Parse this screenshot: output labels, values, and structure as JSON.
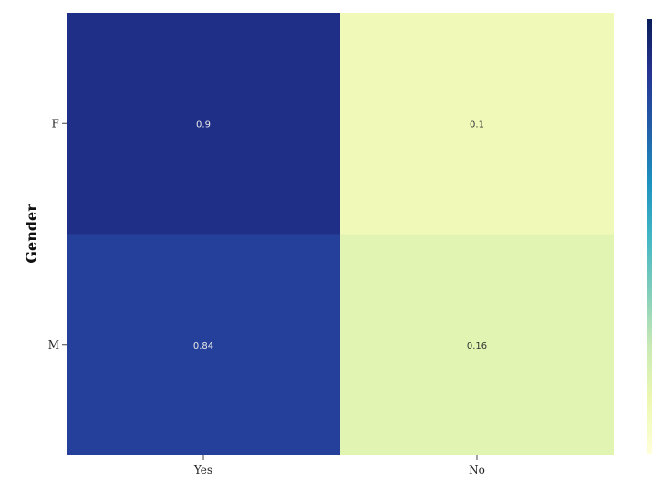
{
  "chart_data": {
    "type": "heatmap",
    "title": "",
    "xlabel": "",
    "ylabel": "Gender",
    "x_categories": [
      "Yes",
      "No"
    ],
    "y_categories": [
      "F",
      "M"
    ],
    "values": [
      [
        0.9,
        0.1
      ],
      [
        0.84,
        0.16
      ]
    ],
    "value_labels": [
      [
        "0.9",
        "0.1"
      ],
      [
        "0.84",
        "0.16"
      ]
    ],
    "colorscale": {
      "name": "YlGnBu",
      "low_color": "#ffffd9",
      "high_color": "#081d58",
      "range": [
        0,
        1
      ]
    },
    "colorbar": {
      "visible": true,
      "placement": "right",
      "tick_labels_visible": false
    },
    "grid": false
  }
}
